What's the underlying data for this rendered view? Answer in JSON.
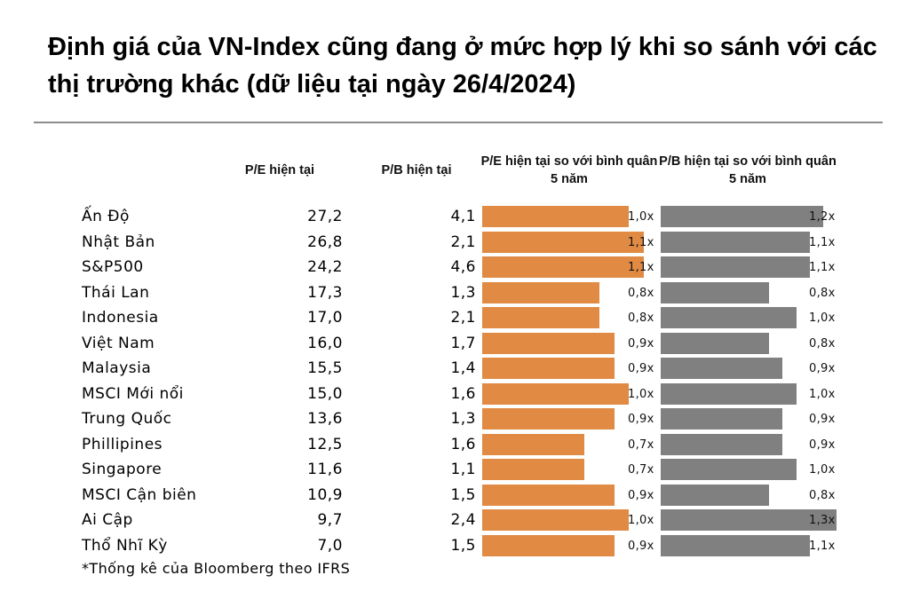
{
  "title": "Định giá của VN-Index cũng đang ở mức hợp lý khi so sánh với các thị trường khác  (dữ liệu tại ngày 26/4/2024)",
  "footnote": "*Thống kê của Bloomberg theo IFRS",
  "colors": {
    "orange": "#e08a44",
    "gray": "#808080"
  },
  "chart_data": {
    "type": "table",
    "columns": [
      "P/E hiện tại",
      "P/B hiện tại",
      "P/E hiện tại so với bình quân 5 năm",
      "P/B hiện tại so với bình quân 5 năm"
    ],
    "rows": [
      {
        "country": "Ấn Độ",
        "pe": "27,2",
        "pb": "4,1",
        "pe_rel": 1.0,
        "pe_rel_label": "1,0x",
        "pb_rel": 1.2,
        "pb_rel_label": "1,2x"
      },
      {
        "country": "Nhật Bản",
        "pe": "26,8",
        "pb": "2,1",
        "pe_rel": 1.1,
        "pe_rel_label": "1,1x",
        "pb_rel": 1.1,
        "pb_rel_label": "1,1x"
      },
      {
        "country": "S&P500",
        "pe": "24,2",
        "pb": "4,6",
        "pe_rel": 1.1,
        "pe_rel_label": "1,1x",
        "pb_rel": 1.1,
        "pb_rel_label": "1,1x"
      },
      {
        "country": "Thái Lan",
        "pe": "17,3",
        "pb": "1,3",
        "pe_rel": 0.8,
        "pe_rel_label": "0,8x",
        "pb_rel": 0.8,
        "pb_rel_label": "0,8x"
      },
      {
        "country": "Indonesia",
        "pe": "17,0",
        "pb": "2,1",
        "pe_rel": 0.8,
        "pe_rel_label": "0,8x",
        "pb_rel": 1.0,
        "pb_rel_label": "1,0x"
      },
      {
        "country": "Việt Nam",
        "pe": "16,0",
        "pb": "1,7",
        "pe_rel": 0.9,
        "pe_rel_label": "0,9x",
        "pb_rel": 0.8,
        "pb_rel_label": "0,8x"
      },
      {
        "country": "Malaysia",
        "pe": "15,5",
        "pb": "1,4",
        "pe_rel": 0.9,
        "pe_rel_label": "0,9x",
        "pb_rel": 0.9,
        "pb_rel_label": "0,9x"
      },
      {
        "country": "MSCI Mới nổi",
        "pe": "15,0",
        "pb": "1,6",
        "pe_rel": 1.0,
        "pe_rel_label": "1,0x",
        "pb_rel": 1.0,
        "pb_rel_label": "1,0x"
      },
      {
        "country": "Trung Quốc",
        "pe": "13,6",
        "pb": "1,3",
        "pe_rel": 0.9,
        "pe_rel_label": "0,9x",
        "pb_rel": 0.9,
        "pb_rel_label": "0,9x"
      },
      {
        "country": "Phillipines",
        "pe": "12,5",
        "pb": "1,6",
        "pe_rel": 0.7,
        "pe_rel_label": "0,7x",
        "pb_rel": 0.9,
        "pb_rel_label": "0,9x"
      },
      {
        "country": "Singapore",
        "pe": "11,6",
        "pb": "1,1",
        "pe_rel": 0.7,
        "pe_rel_label": "0,7x",
        "pb_rel": 1.0,
        "pb_rel_label": "1,0x"
      },
      {
        "country": "MSCI Cận biên",
        "pe": "10,9",
        "pb": "1,5",
        "pe_rel": 0.9,
        "pe_rel_label": "0,9x",
        "pb_rel": 0.8,
        "pb_rel_label": "0,8x"
      },
      {
        "country": "Ai Cập",
        "pe": "9,7",
        "pb": "2,4",
        "pe_rel": 1.0,
        "pe_rel_label": "1,0x",
        "pb_rel": 1.3,
        "pb_rel_label": "1,3x"
      },
      {
        "country": "Thổ Nhĩ Kỳ",
        "pe": "7,0",
        "pb": "1,5",
        "pe_rel": 0.9,
        "pe_rel_label": "0,9x",
        "pb_rel": 1.1,
        "pb_rel_label": "1,1x"
      }
    ]
  }
}
